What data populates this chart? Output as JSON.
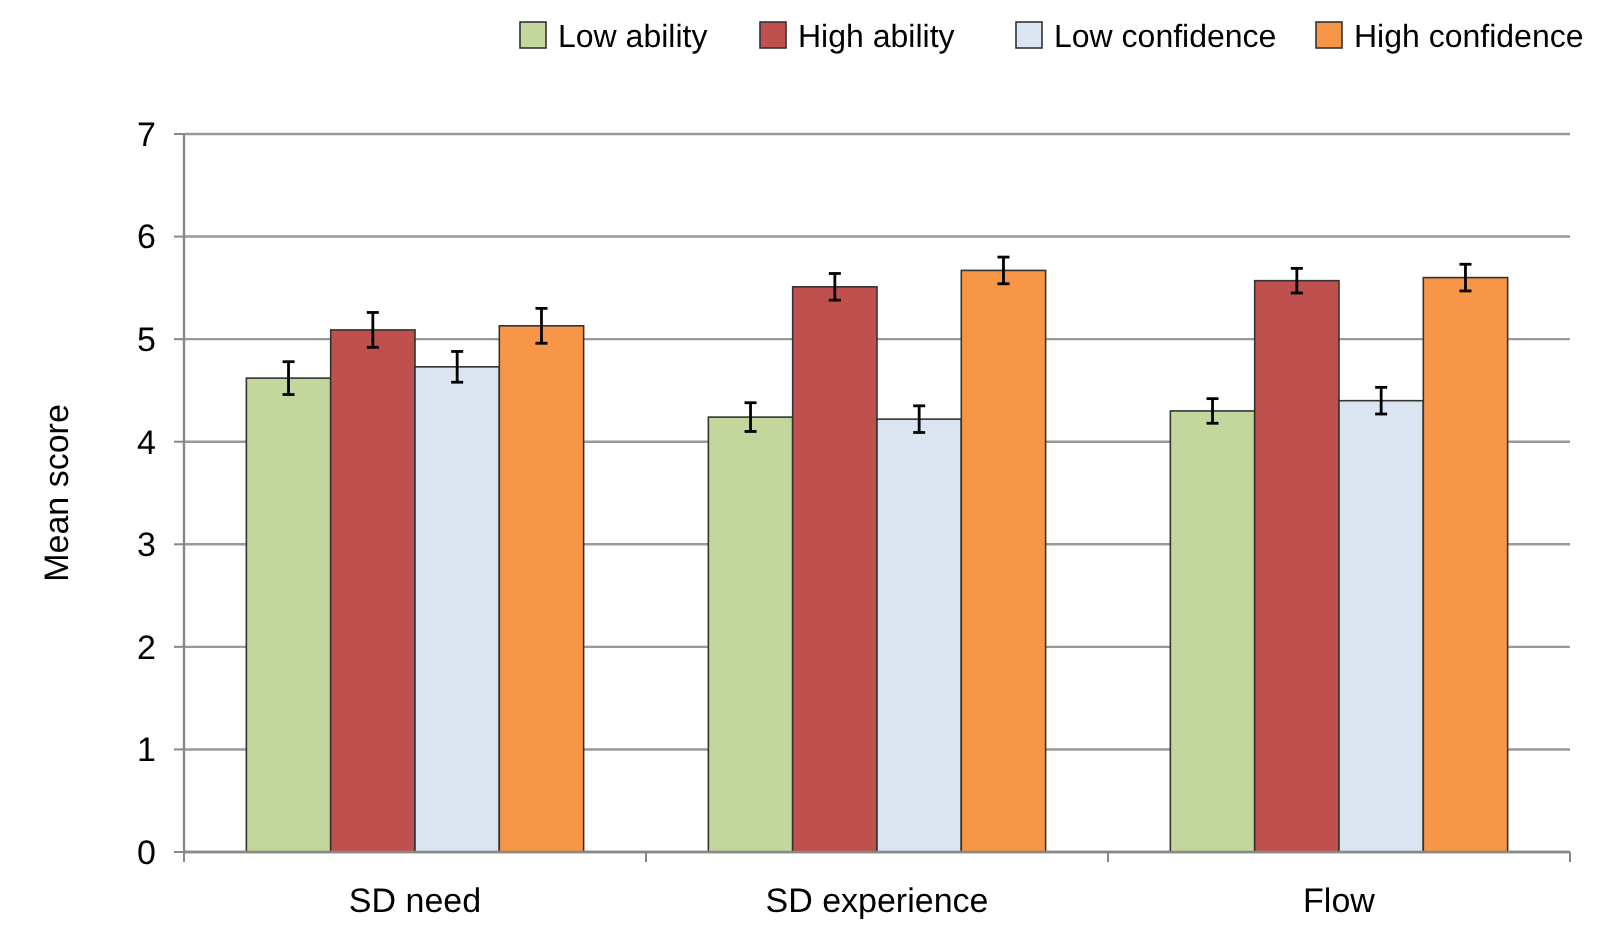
{
  "chart_data": {
    "type": "bar",
    "ylabel": "Mean score",
    "categories": [
      "SD need",
      "SD experience",
      "Flow"
    ],
    "series": [
      {
        "name": "Low ability",
        "color": "#c3d69b",
        "values": [
          4.62,
          4.24,
          4.3
        ],
        "errors": [
          0.16,
          0.14,
          0.12
        ]
      },
      {
        "name": "High ability",
        "color": "#c0504d",
        "values": [
          5.09,
          5.51,
          5.57
        ],
        "errors": [
          0.17,
          0.13,
          0.12
        ]
      },
      {
        "name": "Low confidence",
        "color": "#dbe5f1",
        "values": [
          4.73,
          4.22,
          4.4
        ],
        "errors": [
          0.15,
          0.13,
          0.13
        ]
      },
      {
        "name": "High confidence",
        "color": "#f79646",
        "values": [
          5.13,
          5.67,
          5.6
        ],
        "errors": [
          0.17,
          0.13,
          0.13
        ]
      }
    ],
    "ylim": [
      0,
      7
    ],
    "yticks": [
      0,
      1,
      2,
      3,
      4,
      5,
      6,
      7
    ],
    "grid": "y",
    "legend": "top"
  }
}
